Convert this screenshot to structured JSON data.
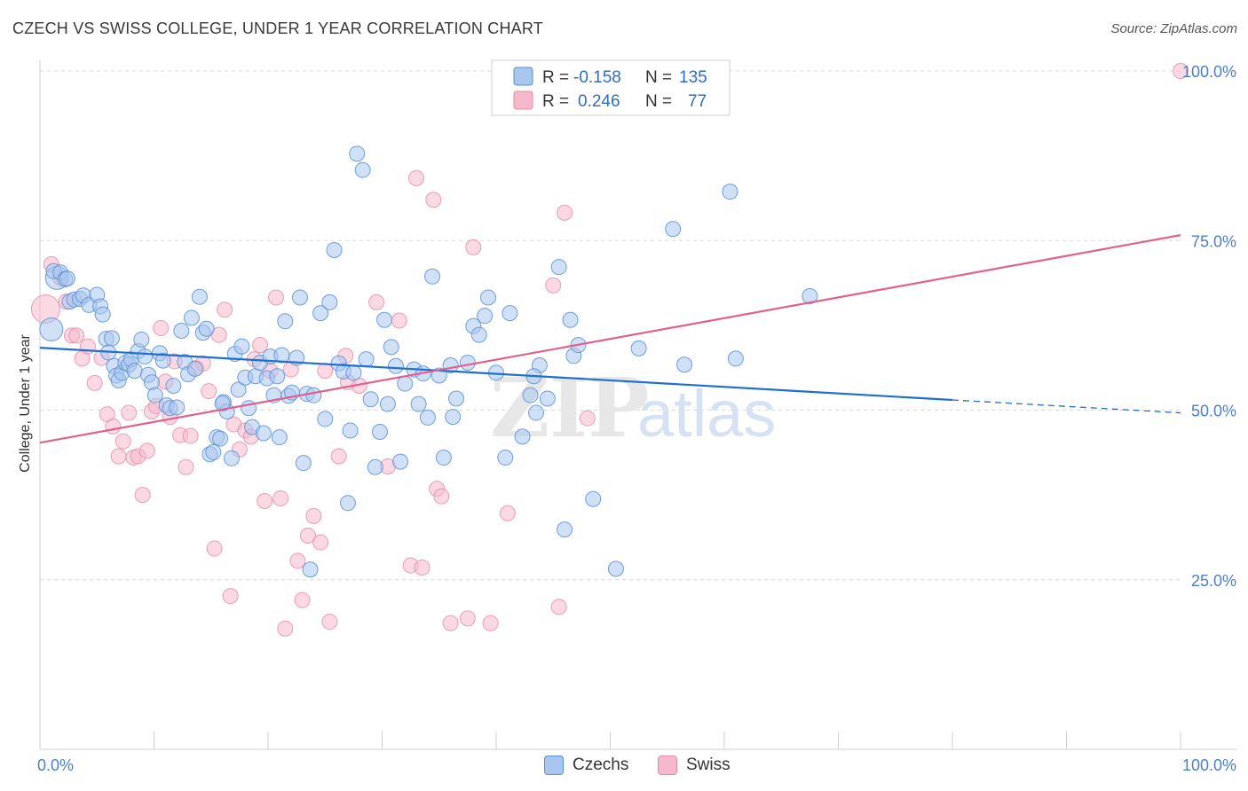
{
  "title": "CZECH VS SWISS COLLEGE, UNDER 1 YEAR CORRELATION CHART",
  "source": "Source: ZipAtlas.com",
  "watermark": {
    "zip": "ZIP",
    "atlas": "atlas"
  },
  "legend_top": [
    {
      "r_label": "R =",
      "r_value": "-0.158",
      "n_label": "N =",
      "n_value": "135"
    },
    {
      "r_label": "R =",
      "r_value": "0.246",
      "n_label": "N =",
      "n_value": "77"
    }
  ],
  "legend_bottom": [
    {
      "label": "Czechs"
    },
    {
      "label": "Swiss"
    }
  ],
  "colors": {
    "czech_fill": "#a9c6ee",
    "czech_stroke": "#5b8fd6",
    "czech_line": "#1f6fcf",
    "swiss_fill": "#f6b9cc",
    "swiss_stroke": "#e58aa8",
    "swiss_line": "#e0608e",
    "tick_label": "#4a7fd0",
    "grid": "#d8d8d8"
  },
  "chart_data": {
    "type": "scatter",
    "title": "CZECH VS SWISS COLLEGE, UNDER 1 YEAR CORRELATION CHART",
    "xlabel": "",
    "ylabel": "College, Under 1 year",
    "xlim": [
      0,
      100
    ],
    "ylim": [
      0,
      100
    ],
    "x_tick_labels": [
      {
        "v": 0,
        "label": "0.0%"
      },
      {
        "v": 100,
        "label": "100.0%"
      }
    ],
    "y_tick_labels": [
      {
        "v": 25,
        "label": "25.0%"
      },
      {
        "v": 50,
        "label": "50.0%"
      },
      {
        "v": 75,
        "label": "75.0%"
      },
      {
        "v": 100,
        "label": "100.0%"
      }
    ],
    "series": [
      {
        "name": "Czechs",
        "r": -0.158,
        "n": 135,
        "trend": {
          "x0": 0,
          "y0": 59.2,
          "x1": 80,
          "y1": 51.5,
          "dash_to_x": 100,
          "dash_to_y": 49.6
        },
        "points": [
          [
            1.5,
            69.5
          ],
          [
            1,
            61.9
          ],
          [
            1.2,
            70.5
          ],
          [
            1.8,
            70.3
          ],
          [
            2.2,
            69.3
          ],
          [
            2.4,
            69.4
          ],
          [
            2.6,
            66.0
          ],
          [
            3.0,
            66.3
          ],
          [
            3.5,
            66.4
          ],
          [
            3.8,
            66.9
          ],
          [
            4.3,
            65.5
          ],
          [
            5.0,
            67.0
          ],
          [
            5.3,
            65.3
          ],
          [
            5.5,
            64.1
          ],
          [
            5.8,
            60.5
          ],
          [
            6.0,
            58.5
          ],
          [
            6.3,
            60.6
          ],
          [
            6.5,
            56.5
          ],
          [
            6.7,
            55.1
          ],
          [
            6.9,
            54.4
          ],
          [
            7.2,
            55.5
          ],
          [
            7.5,
            57.0
          ],
          [
            7.8,
            56.7
          ],
          [
            8.0,
            57.5
          ],
          [
            8.3,
            55.8
          ],
          [
            8.6,
            58.7
          ],
          [
            8.9,
            60.4
          ],
          [
            9.2,
            57.9
          ],
          [
            9.5,
            55.2
          ],
          [
            9.8,
            54.1
          ],
          [
            10.1,
            52.2
          ],
          [
            10.5,
            58.4
          ],
          [
            10.8,
            57.3
          ],
          [
            11.1,
            50.7
          ],
          [
            11.4,
            50.3
          ],
          [
            11.7,
            53.6
          ],
          [
            12.0,
            50.4
          ],
          [
            12.4,
            61.7
          ],
          [
            12.7,
            57.1
          ],
          [
            13.0,
            55.3
          ],
          [
            13.3,
            63.6
          ],
          [
            13.6,
            56.1
          ],
          [
            14.0,
            66.7
          ],
          [
            14.3,
            61.4
          ],
          [
            14.6,
            62.0
          ],
          [
            14.9,
            43.5
          ],
          [
            15.2,
            43.8
          ],
          [
            15.5,
            46.0
          ],
          [
            15.8,
            45.8
          ],
          [
            16.1,
            51.2
          ],
          [
            16.4,
            49.8
          ],
          [
            16.8,
            42.9
          ],
          [
            17.1,
            58.3
          ],
          [
            17.4,
            53.0
          ],
          [
            17.7,
            59.4
          ],
          [
            18.0,
            54.8
          ],
          [
            18.3,
            50.3
          ],
          [
            18.6,
            47.5
          ],
          [
            18.9,
            55.0
          ],
          [
            19.3,
            57.0
          ],
          [
            19.6,
            46.6
          ],
          [
            19.9,
            54.7
          ],
          [
            20.2,
            57.9
          ],
          [
            20.5,
            52.2
          ],
          [
            20.8,
            55.0
          ],
          [
            21.2,
            58.1
          ],
          [
            21.5,
            63.1
          ],
          [
            21.8,
            52.1
          ],
          [
            22.1,
            52.6
          ],
          [
            22.5,
            57.7
          ],
          [
            22.8,
            66.6
          ],
          [
            23.1,
            42.2
          ],
          [
            23.4,
            52.4
          ],
          [
            23.7,
            26.5
          ],
          [
            24.0,
            52.2
          ],
          [
            24.6,
            64.3
          ],
          [
            25.0,
            48.7
          ],
          [
            25.4,
            65.9
          ],
          [
            25.8,
            73.6
          ],
          [
            26.2,
            56.9
          ],
          [
            26.6,
            55.7
          ],
          [
            27.0,
            36.3
          ],
          [
            27.5,
            55.5
          ],
          [
            27.8,
            87.8
          ],
          [
            28.3,
            85.4
          ],
          [
            28.6,
            57.5
          ],
          [
            29.0,
            51.6
          ],
          [
            29.4,
            41.6
          ],
          [
            29.8,
            46.8
          ],
          [
            30.2,
            63.3
          ],
          [
            30.5,
            50.9
          ],
          [
            30.8,
            59.3
          ],
          [
            31.2,
            56.5
          ],
          [
            31.6,
            42.4
          ],
          [
            32.0,
            53.9
          ],
          [
            32.8,
            56.0
          ],
          [
            33.2,
            50.9
          ],
          [
            33.6,
            55.4
          ],
          [
            34.0,
            48.9
          ],
          [
            34.4,
            69.7
          ],
          [
            35.0,
            55.1
          ],
          [
            35.4,
            43.0
          ],
          [
            36.0,
            56.6
          ],
          [
            36.5,
            51.7
          ],
          [
            37.5,
            57.0
          ],
          [
            38.0,
            62.4
          ],
          [
            38.5,
            61.1
          ],
          [
            39.0,
            63.9
          ],
          [
            39.3,
            66.6
          ],
          [
            40.0,
            55.5
          ],
          [
            40.8,
            43.0
          ],
          [
            41.2,
            64.3
          ],
          [
            42.3,
            46.1
          ],
          [
            43.0,
            52.2
          ],
          [
            43.5,
            49.6
          ],
          [
            43.8,
            56.6
          ],
          [
            44.5,
            51.7
          ],
          [
            45.5,
            71.1
          ],
          [
            46.0,
            32.4
          ],
          [
            46.5,
            63.3
          ],
          [
            46.8,
            58.0
          ],
          [
            47.2,
            59.6
          ],
          [
            48.5,
            36.9
          ],
          [
            50.5,
            26.6
          ],
          [
            52.5,
            59.1
          ],
          [
            55.5,
            76.7
          ],
          [
            56.5,
            56.7
          ],
          [
            60.5,
            82.2
          ],
          [
            61.0,
            57.6
          ],
          [
            67.5,
            66.8
          ],
          [
            43.3,
            55.0
          ],
          [
            16.0,
            51.0
          ],
          [
            21.0,
            46.0
          ],
          [
            36.2,
            49.0
          ],
          [
            27.2,
            47.0
          ]
        ]
      },
      {
        "name": "Swiss",
        "r": 0.246,
        "n": 77,
        "trend": {
          "x0": 0,
          "y0": 45.2,
          "x1": 100,
          "y1": 75.8
        },
        "points": [
          [
            0.5,
            64.9
          ],
          [
            1.0,
            71.5
          ],
          [
            1.8,
            69.5
          ],
          [
            2.3,
            66.0
          ],
          [
            2.8,
            61.0
          ],
          [
            3.2,
            61.0
          ],
          [
            3.7,
            57.6
          ],
          [
            4.2,
            59.4
          ],
          [
            4.8,
            54.0
          ],
          [
            5.4,
            57.7
          ],
          [
            5.9,
            49.4
          ],
          [
            6.4,
            47.6
          ],
          [
            6.9,
            43.2
          ],
          [
            7.3,
            45.4
          ],
          [
            7.8,
            49.6
          ],
          [
            8.2,
            43.0
          ],
          [
            8.6,
            43.2
          ],
          [
            9.0,
            37.5
          ],
          [
            9.4,
            44.0
          ],
          [
            9.8,
            49.8
          ],
          [
            10.2,
            50.6
          ],
          [
            10.6,
            62.1
          ],
          [
            11.0,
            54.2
          ],
          [
            11.4,
            49.0
          ],
          [
            11.8,
            57.2
          ],
          [
            12.3,
            46.3
          ],
          [
            12.8,
            41.6
          ],
          [
            13.2,
            46.2
          ],
          [
            13.7,
            56.2
          ],
          [
            14.3,
            56.9
          ],
          [
            14.8,
            52.8
          ],
          [
            15.3,
            29.6
          ],
          [
            15.7,
            61.1
          ],
          [
            16.2,
            64.8
          ],
          [
            16.7,
            22.6
          ],
          [
            17.0,
            47.9
          ],
          [
            17.5,
            44.2
          ],
          [
            18.0,
            47.0
          ],
          [
            18.5,
            46.1
          ],
          [
            18.8,
            57.5
          ],
          [
            19.3,
            59.6
          ],
          [
            19.7,
            36.6
          ],
          [
            20.2,
            55.8
          ],
          [
            20.7,
            66.6
          ],
          [
            21.1,
            37.0
          ],
          [
            21.5,
            17.8
          ],
          [
            22.0,
            56.0
          ],
          [
            22.6,
            27.8
          ],
          [
            23.0,
            22.0
          ],
          [
            23.5,
            31.5
          ],
          [
            24.0,
            34.4
          ],
          [
            24.6,
            30.5
          ],
          [
            25.0,
            55.8
          ],
          [
            25.4,
            18.8
          ],
          [
            26.2,
            43.2
          ],
          [
            26.8,
            58.0
          ],
          [
            27.0,
            54.1
          ],
          [
            28.0,
            53.6
          ],
          [
            29.5,
            65.9
          ],
          [
            30.5,
            41.7
          ],
          [
            31.5,
            63.2
          ],
          [
            32.5,
            27.1
          ],
          [
            33.0,
            84.2
          ],
          [
            33.5,
            26.8
          ],
          [
            34.5,
            81.0
          ],
          [
            34.8,
            38.4
          ],
          [
            35.2,
            37.3
          ],
          [
            36.0,
            18.6
          ],
          [
            37.5,
            19.3
          ],
          [
            38.0,
            74.0
          ],
          [
            41.0,
            34.8
          ],
          [
            45.0,
            68.4
          ],
          [
            45.5,
            21.0
          ],
          [
            46.0,
            79.1
          ],
          [
            48.0,
            48.8
          ],
          [
            39.5,
            18.6
          ],
          [
            100,
            100
          ]
        ]
      }
    ]
  }
}
